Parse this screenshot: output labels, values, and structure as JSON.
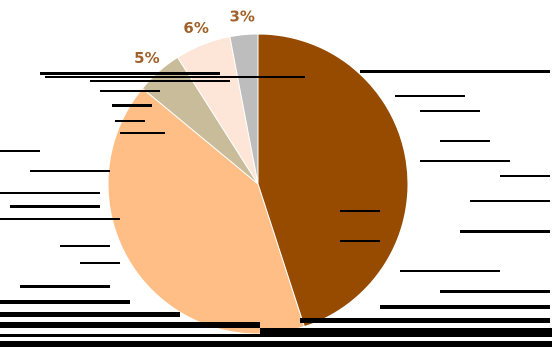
{
  "chart_data": {
    "type": "pie",
    "title": "",
    "start_angle_deg": 0,
    "direction": "clockwise",
    "slices": [
      {
        "label": "",
        "value": 45,
        "value_label": "",
        "color": "#964B00"
      },
      {
        "label": "",
        "value": 41,
        "value_label": "",
        "color": "#FFBE86"
      },
      {
        "label": "",
        "value": 5,
        "value_label": "5%",
        "color": "#C8BC9A"
      },
      {
        "label": "",
        "value": 6,
        "value_label": "6%",
        "color": "#FDE6D8"
      },
      {
        "label": "",
        "value": 3,
        "value_label": "3%",
        "color": "#BDBDBD"
      }
    ],
    "label_color": "#A0622A",
    "legend": "none",
    "grid": false
  }
}
